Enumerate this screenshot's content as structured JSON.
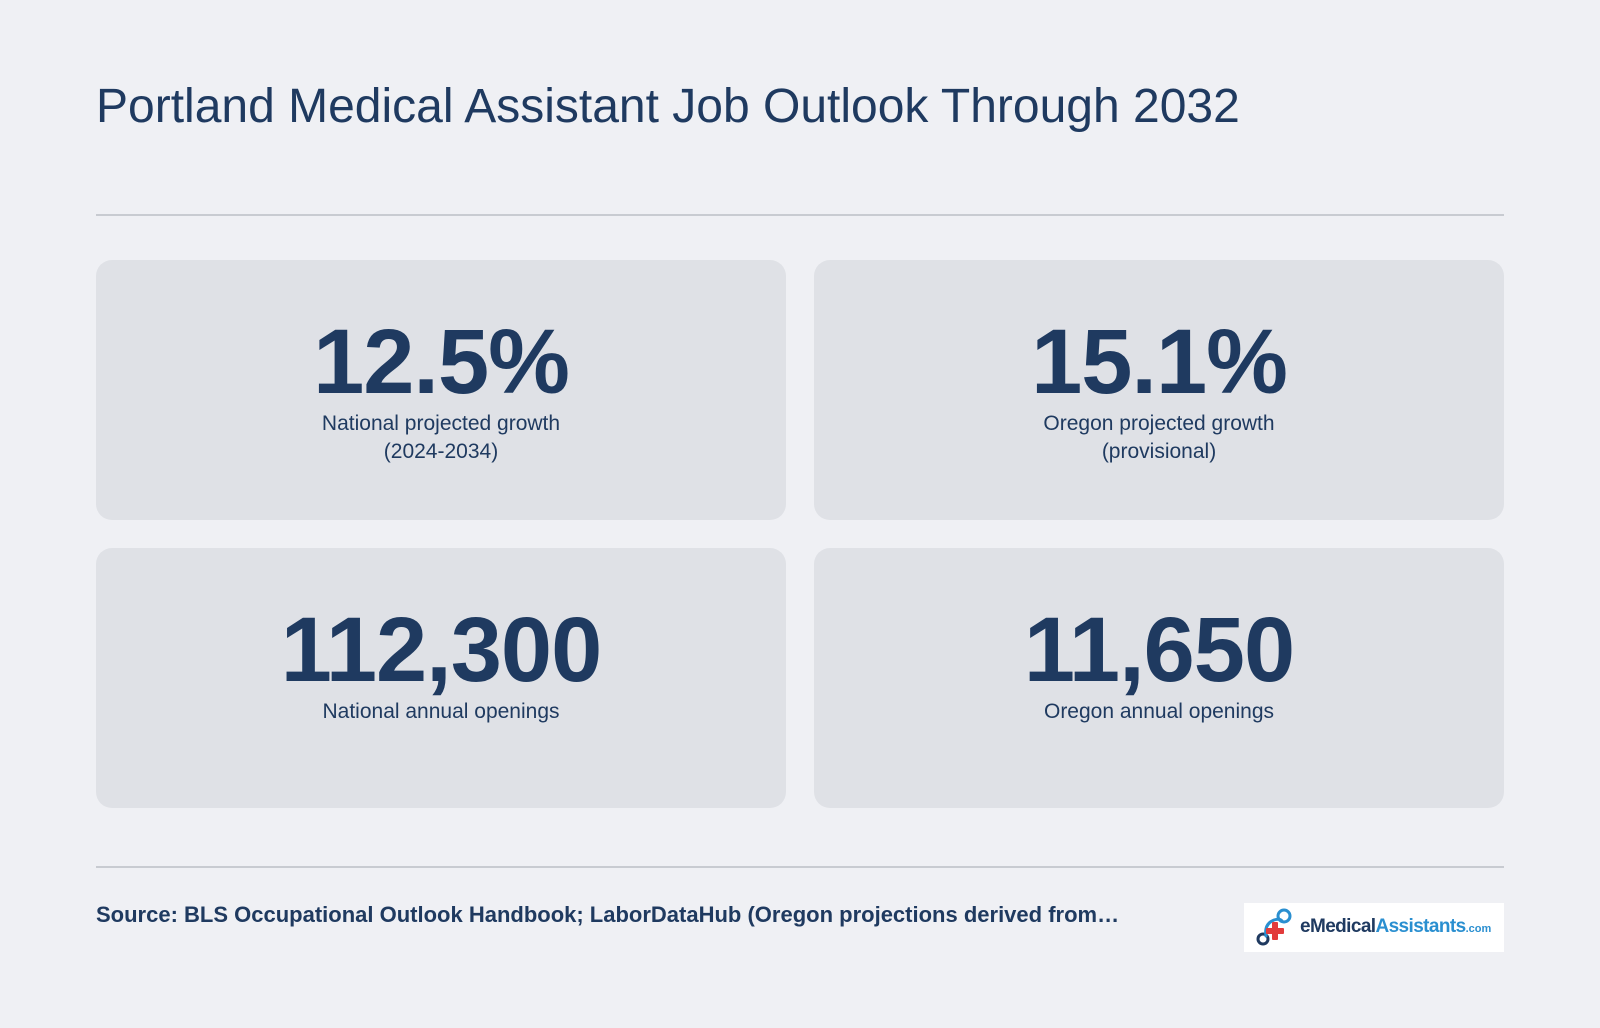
{
  "title": "Portland Medical Assistant Job Outlook Through 2032",
  "stats": [
    {
      "value": "12.5%",
      "label": "National projected growth\n(2024-2034)"
    },
    {
      "value": "15.1%",
      "label": "Oregon projected growth\n(provisional)"
    },
    {
      "value": "112,300",
      "label": "National annual openings"
    },
    {
      "value": "11,650",
      "label": "Oregon annual openings"
    }
  ],
  "source": "Source: BLS Occupational Outlook Handbook; LaborDataHub (Oregon projections derived from…",
  "logo": {
    "part1": "eMedical",
    "part2": "Assistants",
    "part3": ".com",
    "icon": "medical-cross-logo-icon"
  },
  "colors": {
    "background": "#eff0f4",
    "card": "#dfe1e6",
    "text": "#1f3a60",
    "accent_blue": "#2a8fd0",
    "accent_red": "#e23b3b"
  }
}
